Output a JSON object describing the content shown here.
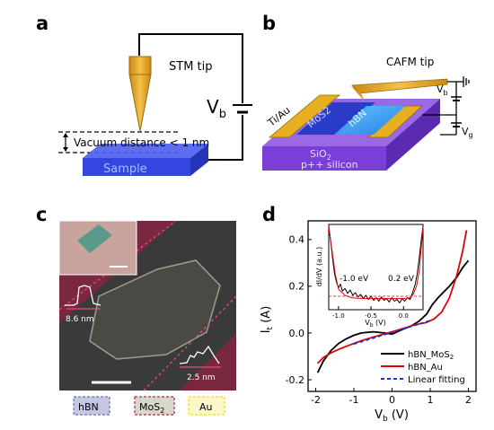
{
  "panels": {
    "a": {
      "label": "a",
      "tip_label": "STM tip",
      "voltage_symbol": "V",
      "voltage_subscript": "b",
      "gap_label": "Vacuum distance < 1 nm",
      "sample_label": "Sample"
    },
    "b": {
      "label": "b",
      "tip_label": "CAFM tip",
      "electrode_left": "Ti/Au",
      "flake_mos2": "MoS2",
      "flake_hbn": "hBN",
      "oxide_label": "SiO",
      "oxide_subscript": "2",
      "substrate_label": "p++ silicon",
      "vb_symbol": "V",
      "vb_subscript": "b",
      "vg_symbol": "V",
      "vg_subscript": "g"
    },
    "c": {
      "label": "c",
      "height_left": "8.6 nm",
      "height_right": "2.5 nm",
      "legend": [
        {
          "text": "hBN",
          "color": "#6b6fb0"
        },
        {
          "text": "MoS",
          "sub": "2",
          "color": "#b02a4a"
        },
        {
          "text": "Au",
          "color": "#e6e000"
        }
      ]
    },
    "d": {
      "label": "d",
      "inset_ann_left": "-1.0 eV",
      "inset_ann_right": "0.2 eV"
    }
  },
  "chart_data": [
    {
      "type": "line",
      "ylabel": "I",
      "ylabel_subscript": "t",
      "ylabel_unit": " (A)",
      "xlabel": "V",
      "xlabel_subscript": "b",
      "xlabel_unit": " (V)",
      "xlim": [
        -2.2,
        2.2
      ],
      "ylim": [
        -0.25,
        0.48
      ],
      "x_ticks": [
        "-2",
        "-1",
        "0",
        "1",
        "2"
      ],
      "x_tick_values": [
        -2,
        -1,
        0,
        1,
        2
      ],
      "y_ticks": [
        "-0.2",
        "0.0",
        "0.2",
        "0.4"
      ],
      "y_tick_values": [
        -0.2,
        0.0,
        0.2,
        0.4
      ],
      "legend_position": "bottom-right",
      "series": [
        {
          "name": "hBN_MoS2",
          "color": "#000000",
          "dash": false,
          "x": [
            -1.95,
            -1.8,
            -1.6,
            -1.4,
            -1.2,
            -1.0,
            -0.8,
            -0.5,
            -0.2,
            0.0,
            0.2,
            0.5,
            0.7,
            0.9,
            1.05,
            1.2,
            1.35,
            1.5,
            1.7,
            1.85,
            2.0
          ],
          "y": [
            -0.17,
            -0.12,
            -0.075,
            -0.045,
            -0.025,
            -0.01,
            0.0,
            0.005,
            0.0,
            -0.005,
            0.01,
            0.03,
            0.05,
            0.08,
            0.12,
            0.15,
            0.175,
            0.2,
            0.24,
            0.28,
            0.31
          ]
        },
        {
          "name": "hBN_Au",
          "color": "#e0000b",
          "dash": false,
          "x": [
            -1.95,
            -1.8,
            -1.6,
            -1.4,
            -1.2,
            -1.0,
            -0.8,
            -0.5,
            -0.2,
            0.0,
            0.3,
            0.6,
            0.9,
            1.1,
            1.3,
            1.5,
            1.7,
            1.85,
            1.95
          ],
          "y": [
            -0.13,
            -0.105,
            -0.085,
            -0.07,
            -0.057,
            -0.045,
            -0.033,
            -0.018,
            -0.004,
            0.005,
            0.02,
            0.035,
            0.045,
            0.06,
            0.09,
            0.15,
            0.25,
            0.35,
            0.44
          ]
        },
        {
          "name": "Linear fitting",
          "color": "#1a33d6",
          "dash": true,
          "x": [
            -1.0,
            1.0
          ],
          "y": [
            -0.047,
            0.053
          ]
        }
      ]
    },
    {
      "type": "line",
      "ylabel": "dI/dV (a.u.)",
      "xlabel": "V",
      "xlabel_subscript": "b",
      "xlabel_unit": " (V)",
      "xlim": [
        -1.15,
        0.3
      ],
      "ylim": [
        0,
        1
      ],
      "x_ticks": [
        "-1.0",
        "-0.5",
        "0.0"
      ],
      "x_tick_values": [
        -1.0,
        -0.5,
        0.0
      ],
      "series": [
        {
          "name": "",
          "color": "#000000",
          "dash": false,
          "x": [
            -1.15,
            -1.12,
            -1.09,
            -1.06,
            -1.03,
            -1.0,
            -0.97,
            -0.94,
            -0.9,
            -0.86,
            -0.82,
            -0.78,
            -0.74,
            -0.7,
            -0.66,
            -0.62,
            -0.58,
            -0.54,
            -0.5,
            -0.46,
            -0.42,
            -0.38,
            -0.34,
            -0.3,
            -0.26,
            -0.22,
            -0.18,
            -0.14,
            -0.1,
            -0.06,
            -0.02,
            0.02,
            0.06,
            0.1,
            0.14,
            0.18,
            0.21,
            0.24,
            0.27,
            0.3
          ],
          "y": [
            0.98,
            0.8,
            0.6,
            0.42,
            0.32,
            0.26,
            0.3,
            0.22,
            0.25,
            0.19,
            0.23,
            0.17,
            0.2,
            0.15,
            0.18,
            0.13,
            0.17,
            0.12,
            0.16,
            0.11,
            0.14,
            0.1,
            0.15,
            0.11,
            0.13,
            0.09,
            0.14,
            0.1,
            0.12,
            0.08,
            0.13,
            0.1,
            0.14,
            0.12,
            0.2,
            0.3,
            0.42,
            0.6,
            0.8,
            0.98
          ]
        },
        {
          "name": "",
          "color": "#e0000b",
          "dash": false,
          "x": [
            -1.15,
            -1.1,
            -1.05,
            -1.0,
            -0.9,
            -0.8,
            -0.6,
            -0.4,
            -0.2,
            0.0,
            0.1,
            0.15,
            0.2,
            0.24,
            0.27,
            0.3
          ],
          "y": [
            0.97,
            0.7,
            0.42,
            0.24,
            0.17,
            0.14,
            0.13,
            0.13,
            0.13,
            0.13,
            0.14,
            0.18,
            0.28,
            0.45,
            0.7,
            0.97
          ]
        }
      ]
    }
  ]
}
